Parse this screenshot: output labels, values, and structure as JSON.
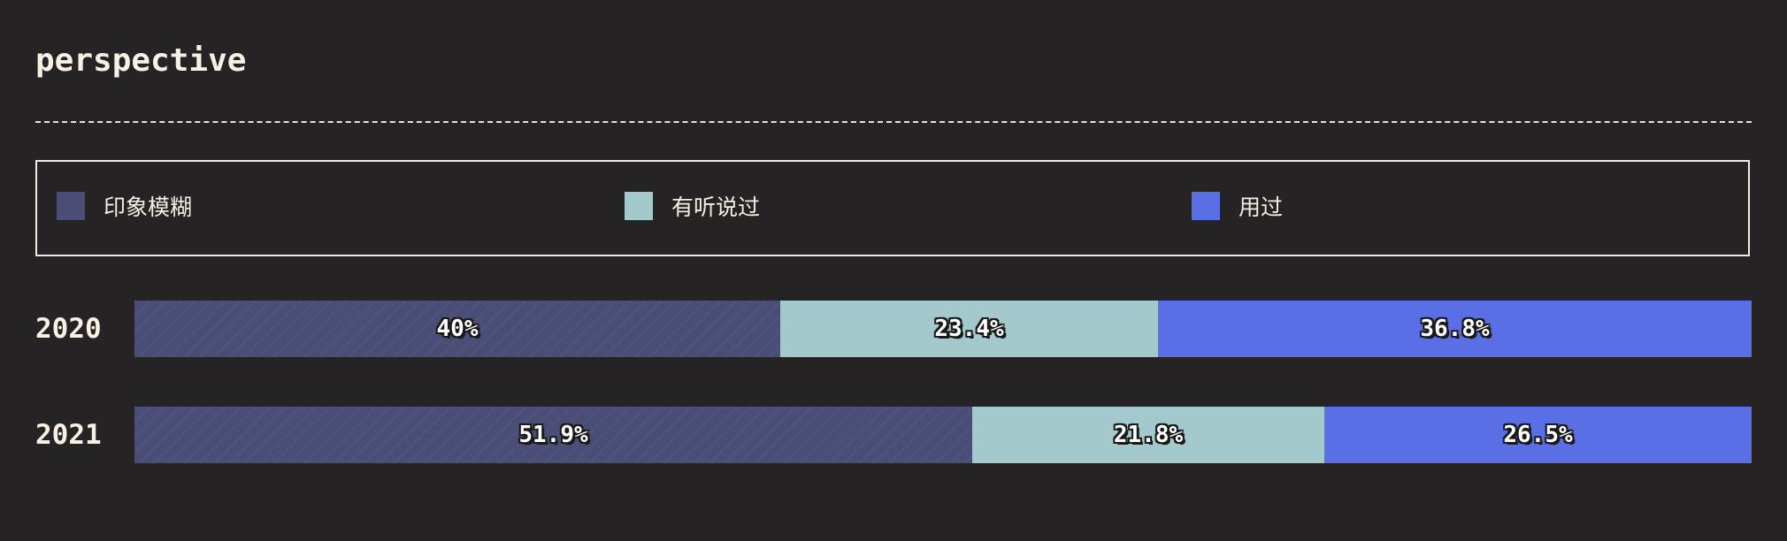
{
  "chart_data": {
    "type": "bar",
    "stacked": true,
    "normalized": true,
    "orientation": "horizontal",
    "title": "perspective",
    "categories": [
      "2020",
      "2021"
    ],
    "series": [
      {
        "name": "印象模糊",
        "color": "#4a4e77",
        "values": [
          40,
          51.9
        ],
        "labels": [
          "40%",
          "51.9%"
        ]
      },
      {
        "name": "有听说过",
        "color": "#a3c9cc",
        "values": [
          23.4,
          21.8
        ],
        "labels": [
          "23.4%",
          "21.8%"
        ]
      },
      {
        "name": "用过",
        "color": "#5a6ee6",
        "values": [
          36.8,
          26.5
        ],
        "labels": [
          "36.8%",
          "26.5%"
        ]
      }
    ],
    "legend_position": "top",
    "grid": false
  }
}
